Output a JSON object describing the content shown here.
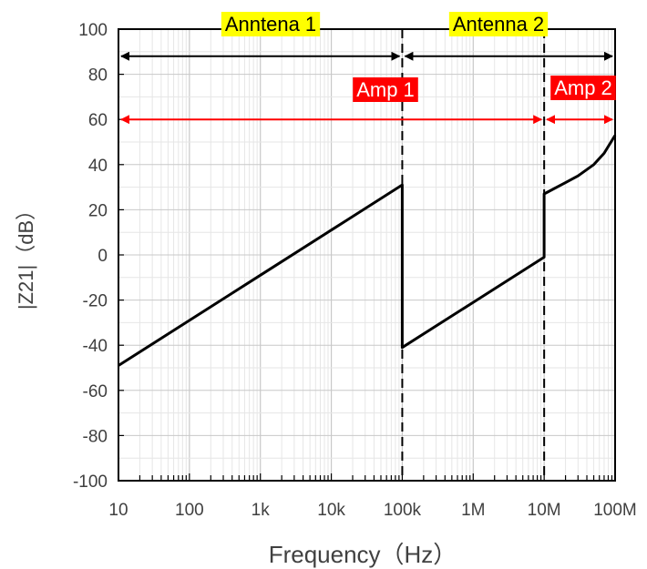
{
  "chart_data": {
    "type": "line",
    "xscale": "log",
    "xlim": [
      10,
      100000000
    ],
    "ylim": [
      -100,
      100
    ],
    "xlabel": "Frequency（Hz）",
    "ylabel": "|Z21|（dB）",
    "xticks": [
      10,
      100,
      1000,
      10000,
      100000,
      1000000,
      10000000,
      100000000
    ],
    "xtick_labels": [
      "10",
      "100",
      "1k",
      "10k",
      "100k",
      "1M",
      "10M",
      "100M"
    ],
    "yticks": [
      -100,
      -80,
      -60,
      -40,
      -20,
      0,
      20,
      40,
      60,
      80,
      100
    ],
    "ytick_labels": [
      "-100",
      "-80",
      "-60",
      "-40",
      "-20",
      "0",
      "20",
      "40",
      "60",
      "80",
      "100"
    ],
    "grid": true,
    "series": [
      {
        "x": [
          10,
          100,
          1000,
          10000,
          100000,
          100000,
          1000000,
          10000000,
          10000000,
          20000000,
          30000000,
          50000000,
          70000000,
          100000000
        ],
        "y": [
          -49,
          -29,
          -9,
          11,
          31,
          -41,
          -21,
          -1,
          27,
          32,
          35,
          40,
          45,
          53
        ],
        "color": "#000000"
      }
    ],
    "vlines": [
      100000,
      10000000
    ],
    "annotations": [
      {
        "text": "Anntena 1",
        "style": "yellow"
      },
      {
        "text": "Antenna 2",
        "style": "yellow"
      },
      {
        "text": "Amp 1",
        "style": "red"
      },
      {
        "text": "Amp 2",
        "style": "red"
      }
    ],
    "arrows": [
      {
        "label": "Anntena 1",
        "from": 10,
        "to": 100000,
        "y": 88,
        "color": "#000000"
      },
      {
        "label": "Antenna 2",
        "from": 100000,
        "to": 100000000,
        "y": 88,
        "color": "#000000"
      },
      {
        "label": "Amp 1",
        "from": 10,
        "to": 10000000,
        "y": 60,
        "color": "#ff0000"
      },
      {
        "label": "Amp 2",
        "from": 10000000,
        "to": 100000000,
        "y": 60,
        "color": "#ff0000"
      }
    ],
    "colors": {
      "label_yellow": "#ffff00",
      "label_red": "#ff0000"
    }
  }
}
